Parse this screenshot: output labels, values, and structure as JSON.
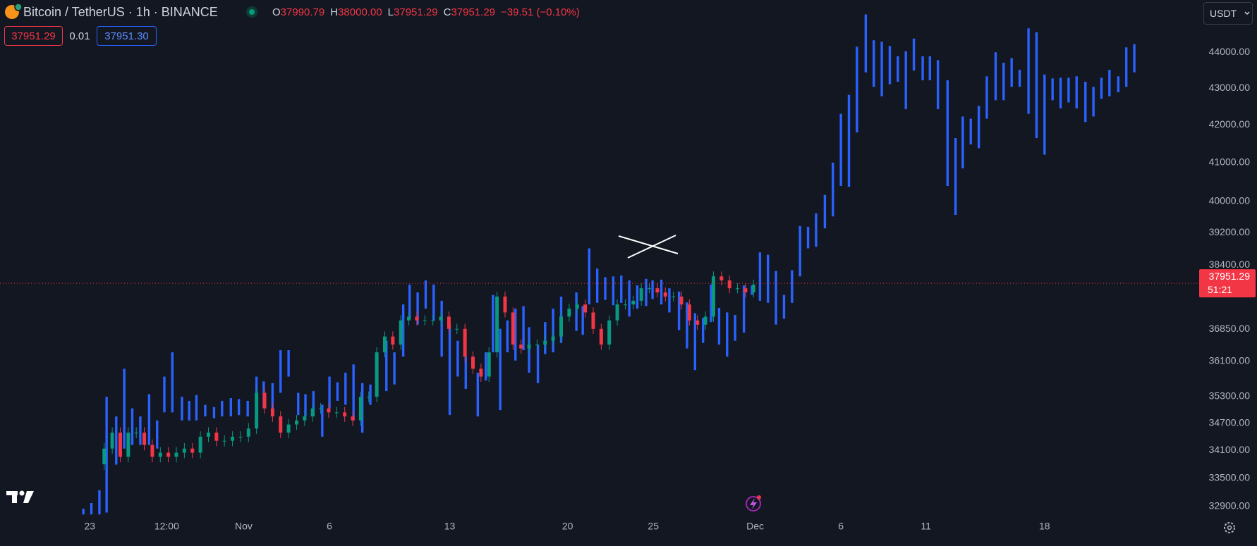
{
  "header": {
    "symbol": "Bitcoin / TetherUS · 1h · BINANCE",
    "ohlc": [
      {
        "key": "O",
        "value": "37990.79"
      },
      {
        "key": "H",
        "value": "38000.00"
      },
      {
        "key": "L",
        "value": "37951.29"
      },
      {
        "key": "C",
        "value": "37951.29"
      }
    ],
    "change": "−39.51 (−0.10%)",
    "sell_price": "37951.29",
    "spread": "0.01",
    "buy_price": "37951.30",
    "currency": "USDT"
  },
  "chart_data": {
    "type": "candlestick",
    "log_scale": true,
    "grid": false,
    "xlim": [
      0,
      149.5
    ],
    "ylim": [
      32600,
      45500
    ],
    "xticks": [
      {
        "value": 11.2,
        "label": "23"
      },
      {
        "value": 20.8,
        "label": "12:00"
      },
      {
        "value": 30.4,
        "label": "Nov"
      },
      {
        "value": 41.1,
        "label": "6"
      },
      {
        "value": 56.1,
        "label": "13"
      },
      {
        "value": 70.8,
        "label": "20"
      },
      {
        "value": 81.5,
        "label": "25"
      },
      {
        "value": 94.2,
        "label": "Dec"
      },
      {
        "value": 104.9,
        "label": "6"
      },
      {
        "value": 115.5,
        "label": "11"
      },
      {
        "value": 130.3,
        "label": "18"
      }
    ],
    "yticks": [
      {
        "value": 32900,
        "label": "32900.00"
      },
      {
        "value": 33500,
        "label": "33500.00"
      },
      {
        "value": 34100,
        "label": "34100.00"
      },
      {
        "value": 34700,
        "label": "34700.00"
      },
      {
        "value": 35300,
        "label": "35300.00"
      },
      {
        "value": 36100,
        "label": "36100.00"
      },
      {
        "value": 36850,
        "label": "36850.00"
      },
      {
        "value": 38400,
        "label": "38400.00"
      },
      {
        "value": 39200,
        "label": "39200.00"
      },
      {
        "value": 40000,
        "label": "40000.00"
      },
      {
        "value": 41000,
        "label": "41000.00"
      },
      {
        "value": 42000,
        "label": "42000.00"
      },
      {
        "value": 43000,
        "label": "43000.00"
      },
      {
        "value": 44000,
        "label": "44000.00"
      }
    ],
    "last_price": 37951.29,
    "countdown": "51:21",
    "last_price_color": "#f23645",
    "range_bars": {
      "color": "#2962ff",
      "x": [
        10.4,
        11.4,
        12.4,
        13.3,
        14.5,
        15.5,
        16.5,
        17.5,
        18.6,
        19.6,
        20.5,
        21.5,
        22.7,
        23.6,
        24.5,
        25.6,
        26.7,
        27.7,
        28.8,
        29.8,
        30.9,
        32.0,
        32.9,
        34.0,
        35.0,
        36.0,
        37.2,
        38.1,
        39.1,
        40.2,
        41.1,
        42.1,
        43.1,
        44.1,
        45.2,
        46.2,
        48.2,
        49.2,
        50.3,
        51.1,
        52.1,
        53.1,
        54.1,
        55.1,
        56.1,
        57.1,
        58.1,
        59.6,
        60.6,
        61.5,
        62.4,
        63.3,
        64.3,
        65.3,
        66.0,
        67.1,
        68.0,
        69.0,
        70.0,
        71.9,
        72.7,
        73.5,
        74.5,
        75.5,
        76.5,
        77.5,
        78.5,
        79.5,
        80.6,
        81.4,
        82.5,
        83.5,
        84.7,
        85.7,
        86.7,
        87.7,
        88.7,
        89.7,
        90.7,
        91.7,
        92.8,
        93.8,
        94.8,
        95.8,
        96.8,
        97.8,
        98.8,
        99.8,
        100.8,
        101.8,
        102.9,
        103.9,
        104.9,
        105.9,
        106.9,
        108.0,
        109.0,
        110.0,
        111.0,
        112.0,
        113.0,
        114.0,
        115.1,
        116.0,
        117.0,
        118.2,
        119.2,
        120.1,
        121.1,
        122.1,
        123.1,
        124.2,
        125.2,
        126.2,
        127.2,
        128.3,
        129.3,
        130.3,
        131.3,
        132.3,
        133.3,
        134.3,
        135.4,
        136.4,
        137.4,
        138.4,
        139.5,
        140.5,
        141.5
      ],
      "high": [
        32850,
        32970,
        33240,
        35290,
        34850,
        35930,
        35030,
        34850,
        35350,
        34760,
        35750,
        36310,
        35290,
        35200,
        35330,
        35110,
        35060,
        35200,
        35260,
        35240,
        35200,
        35750,
        35640,
        35600,
        36360,
        36360,
        35380,
        35350,
        35420,
        35110,
        35750,
        35620,
        35840,
        36030,
        35600,
        35570,
        36580,
        36310,
        37440,
        37920,
        37730,
        38020,
        37920,
        37530,
        36960,
        36580,
        36210,
        35840,
        36310,
        37670,
        36860,
        37060,
        37340,
        37400,
        36900,
        36490,
        37020,
        37340,
        37630,
        37730,
        37400,
        38810,
        38310,
        38100,
        38120,
        38140,
        38020,
        37900,
        38060,
        38020,
        38040,
        37830,
        37750,
        37490,
        37230,
        37120,
        37920,
        37360,
        37250,
        37190,
        37900,
        37900,
        38710,
        38650,
        38250,
        37670,
        38270,
        39370,
        39350,
        39690,
        40160,
        41000,
        42300,
        42820,
        44160,
        45080,
        44340,
        44300,
        44180,
        43890,
        44030,
        44390,
        43890,
        43890,
        43780,
        43220,
        41650,
        42230,
        42170,
        42520,
        43330,
        44000,
        43710,
        43840,
        43510,
        44680,
        44570,
        43380,
        43270,
        43290,
        43290,
        43330,
        43180,
        43040,
        43290,
        43510,
        43330,
        44140,
        44230
      ],
      "low": [
        32730,
        32730,
        32730,
        32770,
        33790,
        34140,
        34220,
        34220,
        34220,
        34140,
        34940,
        34940,
        34760,
        34760,
        34760,
        34850,
        34810,
        34850,
        34850,
        34880,
        34850,
        35110,
        35030,
        34880,
        35380,
        35750,
        34880,
        34850,
        34850,
        34400,
        35030,
        35200,
        35110,
        34760,
        34490,
        35110,
        35420,
        35570,
        36210,
        37100,
        36960,
        37340,
        37060,
        36210,
        34880,
        35750,
        35470,
        34850,
        35660,
        36310,
        34990,
        36310,
        36120,
        36360,
        35840,
        35600,
        36270,
        36310,
        36530,
        36810,
        36720,
        37440,
        37480,
        37550,
        37420,
        37480,
        37150,
        37340,
        37400,
        37570,
        37440,
        37250,
        36830,
        36400,
        35900,
        36530,
        37020,
        36490,
        36210,
        36580,
        36770,
        37670,
        37530,
        37480,
        36960,
        37100,
        37480,
        38120,
        38810,
        38850,
        39310,
        39610,
        40390,
        40370,
        41800,
        43440,
        43040,
        42780,
        43110,
        43180,
        42430,
        43490,
        43220,
        43220,
        42430,
        40390,
        39650,
        40850,
        41480,
        41380,
        42170,
        42670,
        42670,
        43040,
        43040,
        42300,
        41650,
        41210,
        42670,
        42450,
        42610,
        42450,
        42080,
        42230,
        42710,
        42780,
        42890,
        43040,
        43440
      ]
    },
    "candles": {
      "up_color": "#089981",
      "down_color": "#f23645",
      "x": [
        13,
        14,
        15,
        16,
        17,
        18,
        19,
        20,
        21,
        22,
        23,
        24,
        25,
        26,
        27,
        28,
        29,
        30,
        31,
        32,
        33,
        34,
        35,
        36,
        37,
        38,
        39,
        40,
        41,
        42,
        43,
        44,
        45,
        46,
        47,
        48,
        49,
        50,
        51,
        52,
        53,
        54,
        55,
        56,
        57,
        58,
        59,
        60,
        61,
        62,
        63,
        64,
        65,
        66,
        67,
        68,
        69,
        70,
        71,
        72,
        73,
        74,
        75,
        76,
        77,
        78,
        79,
        80,
        81,
        82,
        83,
        84,
        85,
        86,
        87,
        88,
        89,
        90,
        91,
        92,
        93,
        94
      ],
      "open": [
        33800,
        34140,
        34490,
        33960,
        34490,
        34490,
        34220,
        33960,
        34050,
        33960,
        34050,
        34140,
        34050,
        34400,
        34490,
        34310,
        34310,
        34400,
        34400,
        34580,
        35380,
        35030,
        34850,
        34490,
        34670,
        34760,
        34850,
        35030,
        35030,
        34940,
        34940,
        34850,
        34760,
        35290,
        35290,
        36310,
        36680,
        36490,
        37060,
        37150,
        37060,
        37060,
        37060,
        37150,
        36860,
        36860,
        36210,
        35930,
        35750,
        36310,
        37630,
        37250,
        36490,
        36400,
        36490,
        36490,
        36580,
        36680,
        37150,
        37340,
        37440,
        37250,
        36860,
        36490,
        37060,
        37440,
        37440,
        37530,
        37830,
        37830,
        37730,
        37630,
        37630,
        37440,
        37060,
        36960,
        37150,
        38120,
        38020,
        37830,
        37830,
        37730
      ],
      "high": [
        34260,
        34610,
        34610,
        34610,
        34610,
        34610,
        34340,
        34170,
        34170,
        34170,
        34260,
        34260,
        34520,
        34610,
        34610,
        34430,
        34520,
        34520,
        34700,
        35500,
        35500,
        35150,
        34970,
        34790,
        34880,
        34970,
        35150,
        35150,
        35150,
        35060,
        35060,
        34970,
        35410,
        35410,
        36430,
        36800,
        36800,
        37180,
        37270,
        37270,
        37180,
        37180,
        37270,
        37270,
        36980,
        36980,
        36330,
        36050,
        36430,
        37750,
        37750,
        37370,
        36610,
        36610,
        36610,
        36700,
        36800,
        37270,
        37460,
        37560,
        37560,
        37370,
        36980,
        37180,
        37560,
        37560,
        37650,
        37950,
        37950,
        37950,
        37850,
        37750,
        37750,
        37560,
        37180,
        37270,
        38240,
        38240,
        38140,
        37950,
        37950,
        38040
      ],
      "low": [
        33680,
        34020,
        33840,
        33840,
        34370,
        34100,
        33840,
        33840,
        33840,
        33840,
        33930,
        33930,
        33930,
        34280,
        34190,
        34190,
        34190,
        34280,
        34280,
        34460,
        34910,
        34730,
        34370,
        34370,
        34550,
        34640,
        34730,
        34910,
        34820,
        34820,
        34730,
        34640,
        34640,
        35170,
        35170,
        36190,
        36370,
        36370,
        36940,
        36940,
        36940,
        36940,
        36940,
        36740,
        36740,
        36090,
        35810,
        35630,
        35630,
        36190,
        37130,
        36370,
        36280,
        36280,
        36370,
        36370,
        36460,
        36560,
        37030,
        37220,
        37130,
        36740,
        36370,
        36370,
        36940,
        37320,
        37320,
        37410,
        37710,
        37610,
        37510,
        37510,
        37320,
        36940,
        36840,
        36840,
        37030,
        37900,
        37710,
        37710,
        37610,
        37610
      ],
      "close": [
        34140,
        34490,
        33960,
        34490,
        34490,
        34220,
        33960,
        34050,
        33960,
        34050,
        34140,
        34050,
        34400,
        34490,
        34310,
        34310,
        34400,
        34400,
        34580,
        35380,
        35030,
        34850,
        34490,
        34670,
        34760,
        34850,
        35030,
        35030,
        34940,
        34940,
        34850,
        34760,
        35290,
        35290,
        36310,
        36680,
        36490,
        37060,
        37150,
        37060,
        37060,
        37060,
        37150,
        36860,
        36860,
        36210,
        35930,
        35750,
        36310,
        37630,
        37250,
        36490,
        36400,
        36490,
        36490,
        36580,
        36680,
        37150,
        37340,
        37440,
        37250,
        36860,
        36490,
        37060,
        37440,
        37440,
        37530,
        37830,
        37830,
        37730,
        37630,
        37630,
        37440,
        37060,
        36960,
        37150,
        38120,
        38020,
        37830,
        37830,
        37730,
        37920
      ]
    }
  }
}
